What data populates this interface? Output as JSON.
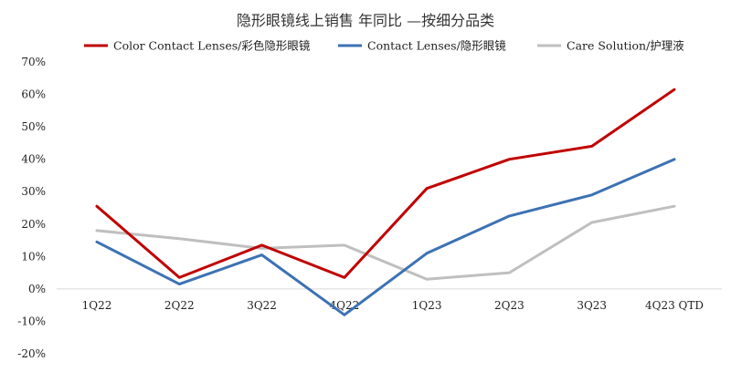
{
  "chart_data": {
    "type": "line",
    "title": "隐形眼镜线上销售 年同比 —按细分品类",
    "categories": [
      "1Q22",
      "2Q22",
      "3Q22",
      "4Q22",
      "1Q23",
      "2Q23",
      "3Q23",
      "4Q23 QTD"
    ],
    "ylim": [
      -20,
      70
    ],
    "yticks": [
      -20,
      -10,
      0,
      10,
      20,
      30,
      40,
      50,
      60,
      70
    ],
    "ytick_labels": [
      "-20%",
      "-10%",
      "0%",
      "10%",
      "20%",
      "30%",
      "40%",
      "50%",
      "60%",
      "70%"
    ],
    "legend_position": "top",
    "series": [
      {
        "name": "Color Contact Lenses/彩色隐形眼镜",
        "color": "#c00000",
        "values": [
          25.5,
          3.5,
          13.5,
          3.5,
          31,
          40,
          44,
          61.5
        ]
      },
      {
        "name": "Contact Lenses/隐形眼镜",
        "color": "#3d72b4",
        "values": [
          14.5,
          1.5,
          10.5,
          -8,
          11,
          22.5,
          29,
          40
        ]
      },
      {
        "name": "Care Solution/护理液",
        "color": "#bfbfbf",
        "values": [
          18,
          15.5,
          12.5,
          13.5,
          3,
          5,
          20.5,
          25.5
        ]
      }
    ]
  }
}
